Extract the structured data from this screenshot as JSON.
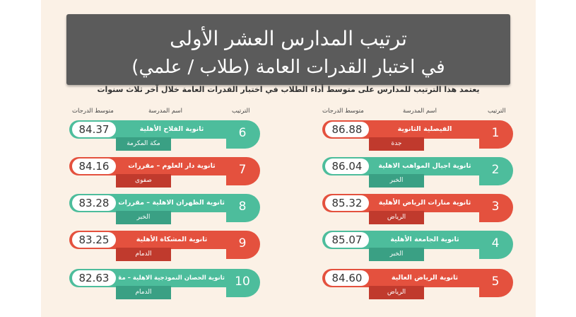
{
  "header": {
    "title_line1": "ترتيب المدارس العشر الأولى",
    "title_line2": "في اختبار القدرات العامة (طلاب / علمي)",
    "subtitle": "يعتمد هذا الترتيب للمدارس على متوسط أداء الطلاب في اختبار القدرات العامة خلال آخر ثلاث سنوات"
  },
  "columns": {
    "rank": "الترتيب",
    "school": "اسم المدرسة",
    "score": "متوسط الدرجات"
  },
  "colors": {
    "green": "#4dbd9c",
    "red": "#e4513e"
  },
  "right_column": [
    {
      "rank": "1",
      "name": "الفيصلية الثانوية",
      "city": "جدة",
      "score": "86.88",
      "color": "red"
    },
    {
      "rank": "2",
      "name": "ثانوية اجيال المواهب الاهلية",
      "city": "الخبر",
      "score": "86.04",
      "color": "green"
    },
    {
      "rank": "3",
      "name": "ثانوية منارات الرياض الأهلية",
      "city": "الرياض",
      "score": "85.32",
      "color": "red"
    },
    {
      "rank": "4",
      "name": "ثانوية الجامعة الأهلية",
      "city": "الخبر",
      "score": "85.07",
      "color": "green"
    },
    {
      "rank": "5",
      "name": "ثانوية الرياض العالية",
      "city": "الرياض",
      "score": "84.60",
      "color": "red"
    }
  ],
  "left_column": [
    {
      "rank": "6",
      "name": "ثانوية الفلاح الأهلية",
      "city": "مكة المكرمة",
      "score": "84.37",
      "color": "green"
    },
    {
      "rank": "7",
      "name": "ثانوية دار العلوم – مقررات",
      "city": "صفوى",
      "score": "84.16",
      "color": "red"
    },
    {
      "rank": "8",
      "name": "ثانوية الظهران الاهلية – مقررات",
      "city": "الخبر",
      "score": "83.28",
      "color": "green"
    },
    {
      "rank": "9",
      "name": "ثانوية المشكاة الأهلية",
      "city": "الدمام",
      "score": "83.25",
      "color": "red"
    },
    {
      "rank": "10",
      "name": "ثانوية الحصان النموذجية الاهلية – مقررات",
      "city": "الدمام",
      "score": "82.63",
      "color": "green"
    }
  ]
}
